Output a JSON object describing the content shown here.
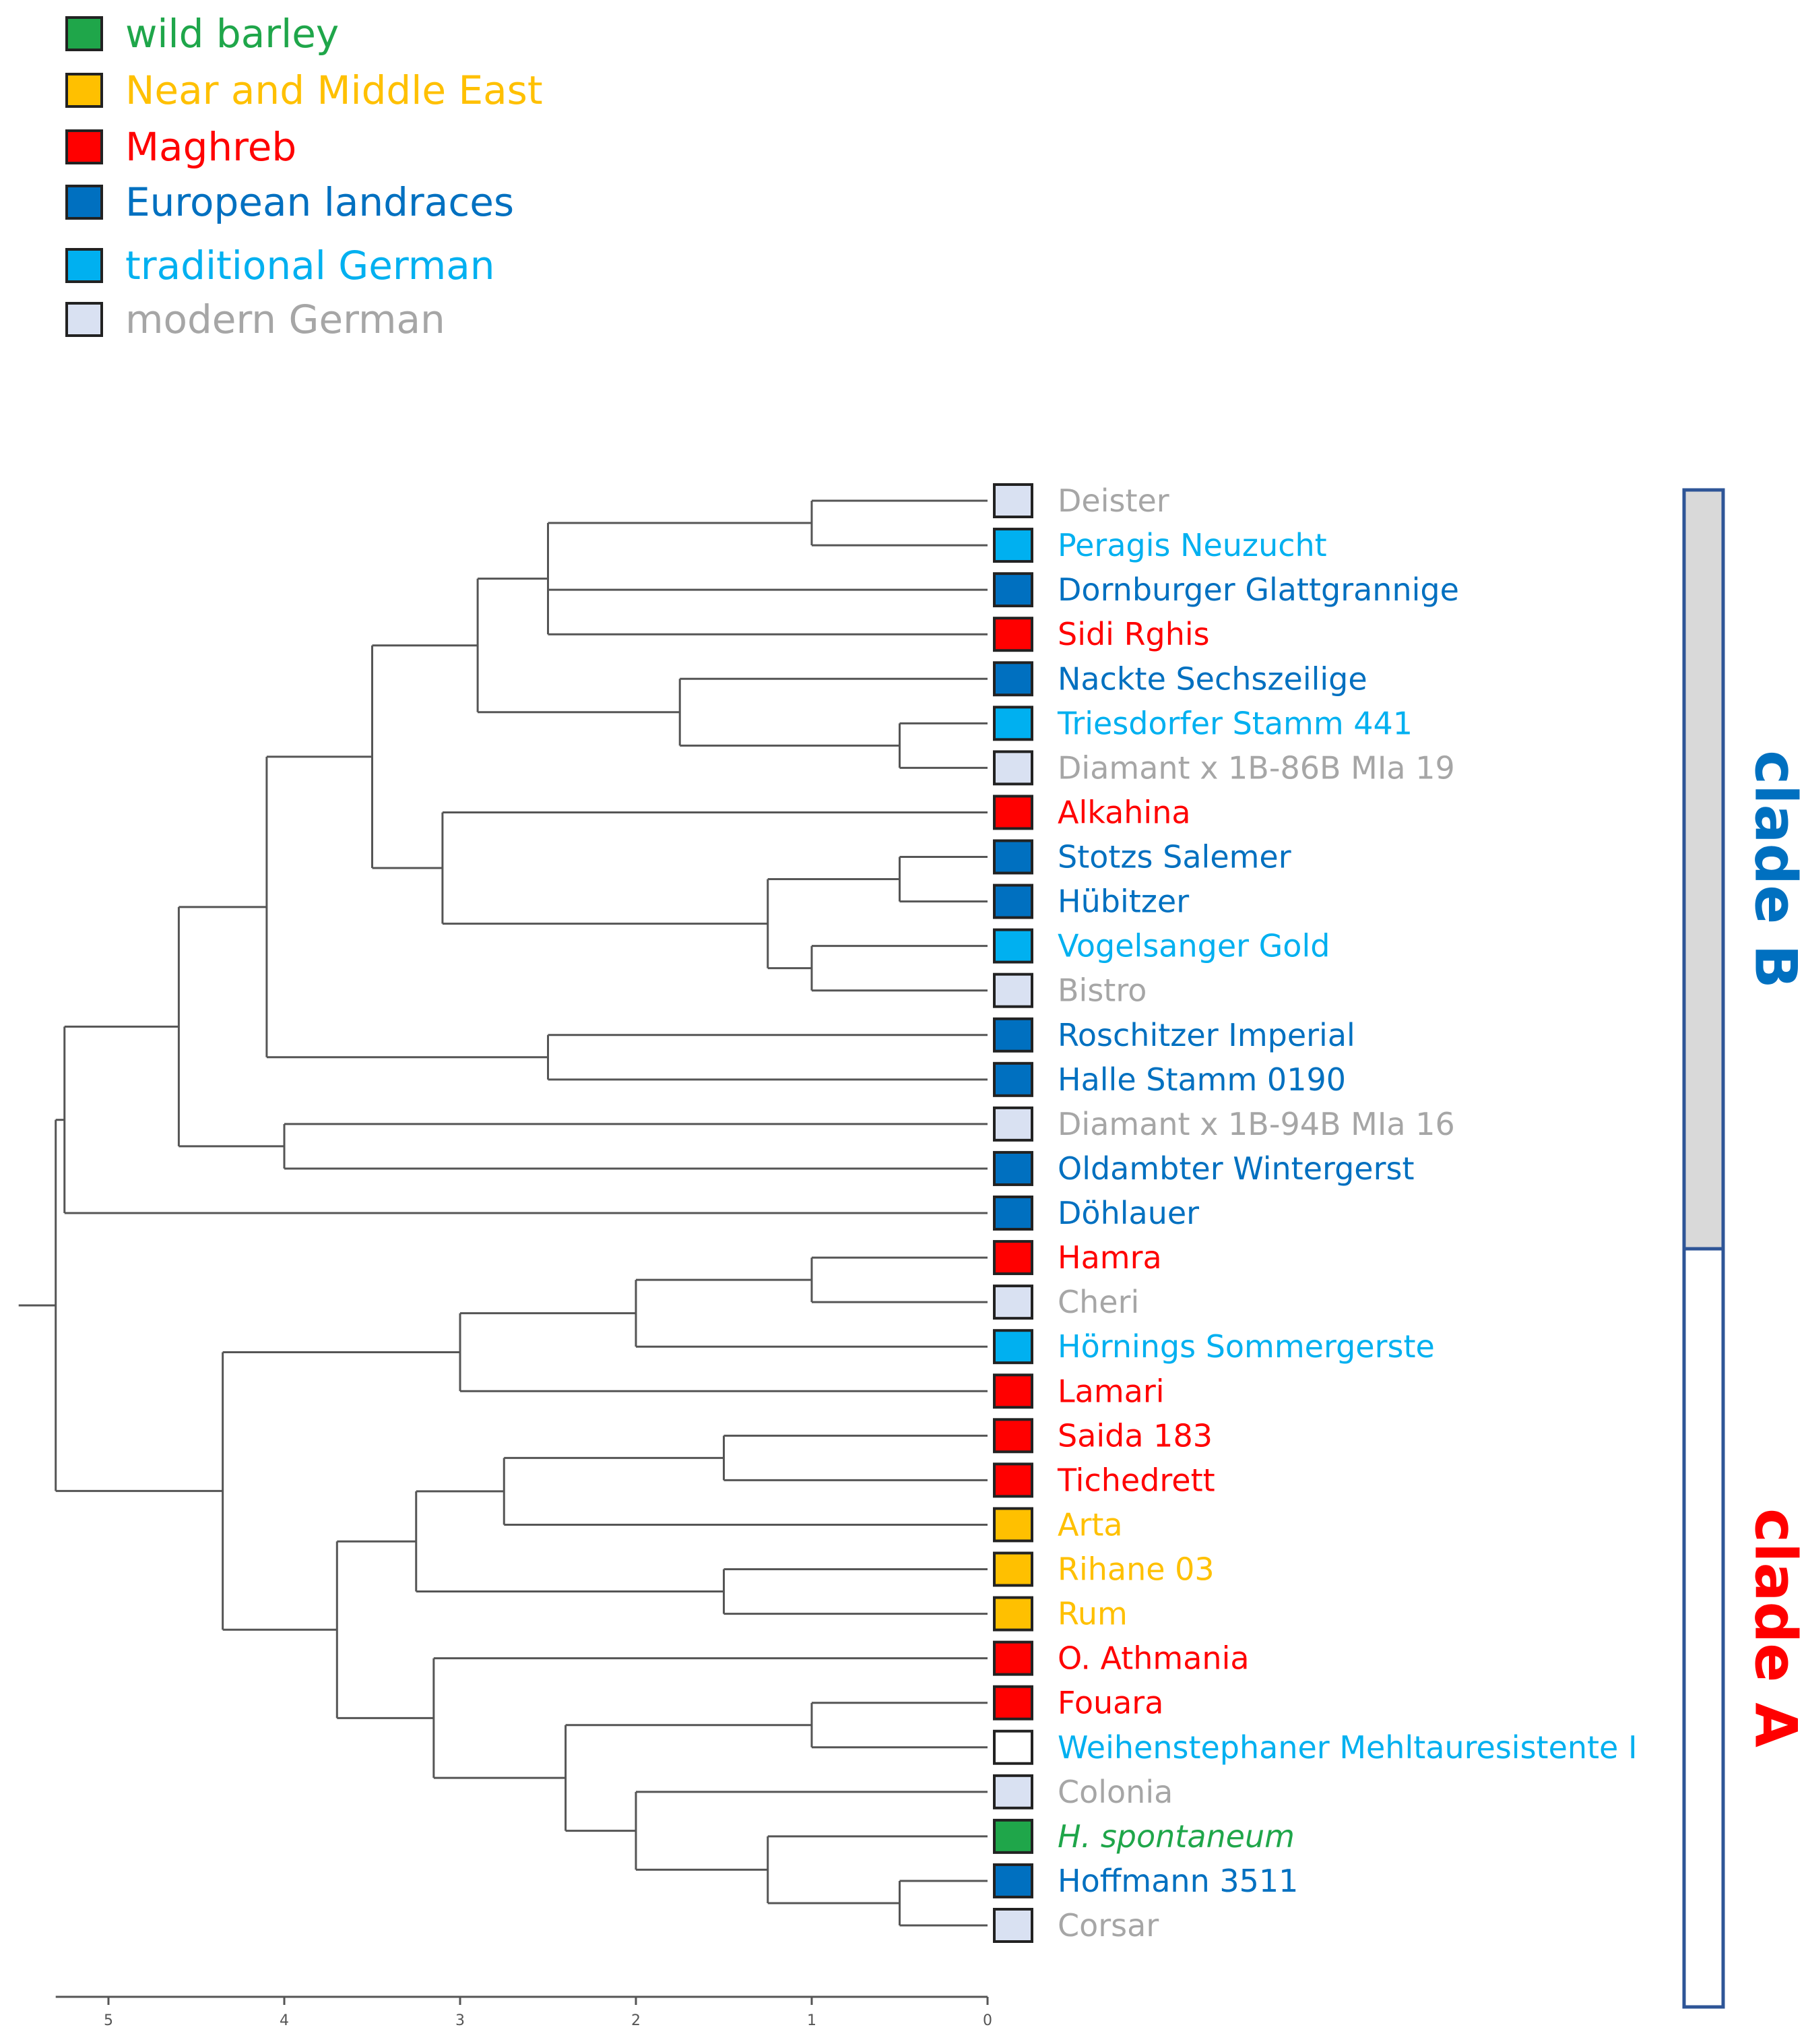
{
  "colors": {
    "wild": "#1fa64a",
    "nme": "#ffc000",
    "maghreb": "#ff0000",
    "euro": "#0070c0",
    "tradger": "#00b0f0",
    "modger": "#d9e1f2",
    "modger_text": "#a6a6a6",
    "white": "#ffffff",
    "tree": "#555555"
  },
  "legend": [
    {
      "label": "wild barley",
      "group": "wild"
    },
    {
      "label": "Near and Middle East",
      "group": "nme"
    },
    {
      "label": "Maghreb",
      "group": "maghreb"
    },
    {
      "label": "European landraces",
      "group": "euro"
    },
    {
      "label": "traditional German",
      "group": "tradger"
    },
    {
      "label": "modern German",
      "group": "modger"
    }
  ],
  "leaves": [
    {
      "id": "l0",
      "label": "Deister",
      "group": "modger"
    },
    {
      "id": "l1",
      "label": "Peragis Neuzucht",
      "group": "tradger"
    },
    {
      "id": "l2",
      "label": "Dornburger Glattgrannige",
      "group": "euro"
    },
    {
      "id": "l3",
      "label": "Sidi Rghis",
      "group": "maghreb"
    },
    {
      "id": "l4",
      "label": "Nackte Sechszeilige",
      "group": "euro"
    },
    {
      "id": "l5",
      "label": "Triesdorfer Stamm 441",
      "group": "tradger"
    },
    {
      "id": "l6",
      "label": "Diamant x 1B-86B MIa 19",
      "group": "modger"
    },
    {
      "id": "l7",
      "label": "Alkahina",
      "group": "maghreb"
    },
    {
      "id": "l8",
      "label": "Stotzs Salemer",
      "group": "euro"
    },
    {
      "id": "l9",
      "label": "Hübitzer",
      "group": "euro"
    },
    {
      "id": "l10",
      "label": "Vogelsanger Gold",
      "group": "tradger"
    },
    {
      "id": "l11",
      "label": "Bistro",
      "group": "modger"
    },
    {
      "id": "l12",
      "label": "Roschitzer Imperial",
      "group": "euro"
    },
    {
      "id": "l13",
      "label": "Halle Stamm 0190",
      "group": "euro"
    },
    {
      "id": "l14",
      "label": "Diamant x 1B-94B MIa 16",
      "group": "modger"
    },
    {
      "id": "l15",
      "label": "Oldambter Wintergerst",
      "group": "euro"
    },
    {
      "id": "l16",
      "label": "Döhlauer",
      "group": "euro"
    },
    {
      "id": "l17",
      "label": "Hamra",
      "group": "maghreb"
    },
    {
      "id": "l18",
      "label": "Cheri",
      "group": "modger"
    },
    {
      "id": "l19",
      "label": "Hörnings Sommergerste",
      "group": "tradger"
    },
    {
      "id": "l20",
      "label": "Lamari",
      "group": "maghreb"
    },
    {
      "id": "l21",
      "label": "Saida 183",
      "group": "maghreb"
    },
    {
      "id": "l22",
      "label": "Tichedrett",
      "group": "maghreb"
    },
    {
      "id": "l23",
      "label": "Arta",
      "group": "nme"
    },
    {
      "id": "l24",
      "label": "Rihane 03",
      "group": "nme"
    },
    {
      "id": "l25",
      "label": "Rum",
      "group": "nme"
    },
    {
      "id": "l26",
      "label": "O. Athmania",
      "group": "maghreb"
    },
    {
      "id": "l27",
      "label": "Fouara",
      "group": "maghreb"
    },
    {
      "id": "l28",
      "label": "Weihenstephaner Mehltauresistente I",
      "group": "tradger",
      "box": "white"
    },
    {
      "id": "l29",
      "label": "Colonia",
      "group": "modger"
    },
    {
      "id": "l30",
      "label": "H. spontaneum",
      "group": "wild",
      "italic": true
    },
    {
      "id": "l31",
      "label": "Hoffmann 3511",
      "group": "euro"
    },
    {
      "id": "l32",
      "label": "Corsar",
      "group": "modger"
    }
  ],
  "tree": [
    {
      "id": "nA1",
      "h": 1.0,
      "children": [
        "l0",
        "l1"
      ]
    },
    {
      "id": "nA2",
      "h": 2.5,
      "children": [
        "nA1",
        "l2",
        "l3"
      ]
    },
    {
      "id": "nA3",
      "h": 0.5,
      "children": [
        "l5",
        "l6"
      ]
    },
    {
      "id": "nA4",
      "h": 1.75,
      "children": [
        "l4",
        "nA3"
      ]
    },
    {
      "id": "nA5",
      "h": 2.9,
      "children": [
        "nA2",
        "nA4"
      ]
    },
    {
      "id": "nA6",
      "h": 0.5,
      "children": [
        "l8",
        "l9"
      ]
    },
    {
      "id": "nA7",
      "h": 1.0,
      "children": [
        "l10",
        "l11"
      ]
    },
    {
      "id": "nA8",
      "h": 1.25,
      "children": [
        "nA6",
        "nA7"
      ]
    },
    {
      "id": "nA9",
      "h": 3.1,
      "children": [
        "l7",
        "nA8"
      ]
    },
    {
      "id": "nA10",
      "h": 3.5,
      "children": [
        "nA5",
        "nA9"
      ]
    },
    {
      "id": "nA11",
      "h": 2.5,
      "children": [
        "l12",
        "l13"
      ]
    },
    {
      "id": "nA12",
      "h": 4.1,
      "children": [
        "nA10",
        "nA11"
      ]
    },
    {
      "id": "nA13",
      "h": 4.0,
      "children": [
        "l14",
        "l15"
      ]
    },
    {
      "id": "nA14",
      "h": 4.6,
      "children": [
        "nA12",
        "nA13"
      ]
    },
    {
      "id": "nA15",
      "h": 5.25,
      "children": [
        "nA14",
        "l16"
      ]
    },
    {
      "id": "nB1",
      "h": 1.0,
      "children": [
        "l17",
        "l18"
      ]
    },
    {
      "id": "nB2",
      "h": 2.0,
      "children": [
        "nB1",
        "l19"
      ]
    },
    {
      "id": "nB3",
      "h": 3.0,
      "children": [
        "nB2",
        "l20"
      ]
    },
    {
      "id": "nB4",
      "h": 1.5,
      "children": [
        "l21",
        "l22"
      ]
    },
    {
      "id": "nB5",
      "h": 2.75,
      "children": [
        "nB4",
        "l23"
      ]
    },
    {
      "id": "nB6",
      "h": 1.5,
      "children": [
        "l24",
        "l25"
      ]
    },
    {
      "id": "nB7",
      "h": 3.25,
      "children": [
        "nB5",
        "nB6"
      ]
    },
    {
      "id": "nB8",
      "h": 1.0,
      "children": [
        "l27",
        "l28"
      ]
    },
    {
      "id": "nB9",
      "h": 0.5,
      "children": [
        "l31",
        "l32"
      ]
    },
    {
      "id": "nB10",
      "h": 1.25,
      "children": [
        "l30",
        "nB9"
      ]
    },
    {
      "id": "nB11",
      "h": 2.0,
      "children": [
        "l29",
        "nB10"
      ]
    },
    {
      "id": "nB12",
      "h": 2.4,
      "children": [
        "nB8",
        "nB11"
      ]
    },
    {
      "id": "nB13",
      "h": 3.15,
      "children": [
        "l26",
        "nB12"
      ]
    },
    {
      "id": "nB14",
      "h": 3.7,
      "children": [
        "nB7",
        "nB13"
      ]
    },
    {
      "id": "nB15",
      "h": 4.35,
      "children": [
        "nB3",
        "nB14"
      ]
    },
    {
      "id": "root",
      "h": 5.3,
      "children": [
        "nA15",
        "nB15"
      ]
    }
  ],
  "axis": {
    "ticks": [
      5,
      4,
      3,
      2,
      1,
      0
    ],
    "max": 5.3
  },
  "clades": [
    {
      "label": "clade B",
      "color": "#0070c0",
      "fill": "#d9d9d9",
      "from": "l0",
      "to": "l16"
    },
    {
      "label": "clade A",
      "color": "#ff0000",
      "fill": "#ffffff",
      "from": "l17",
      "to": "l32"
    }
  ]
}
